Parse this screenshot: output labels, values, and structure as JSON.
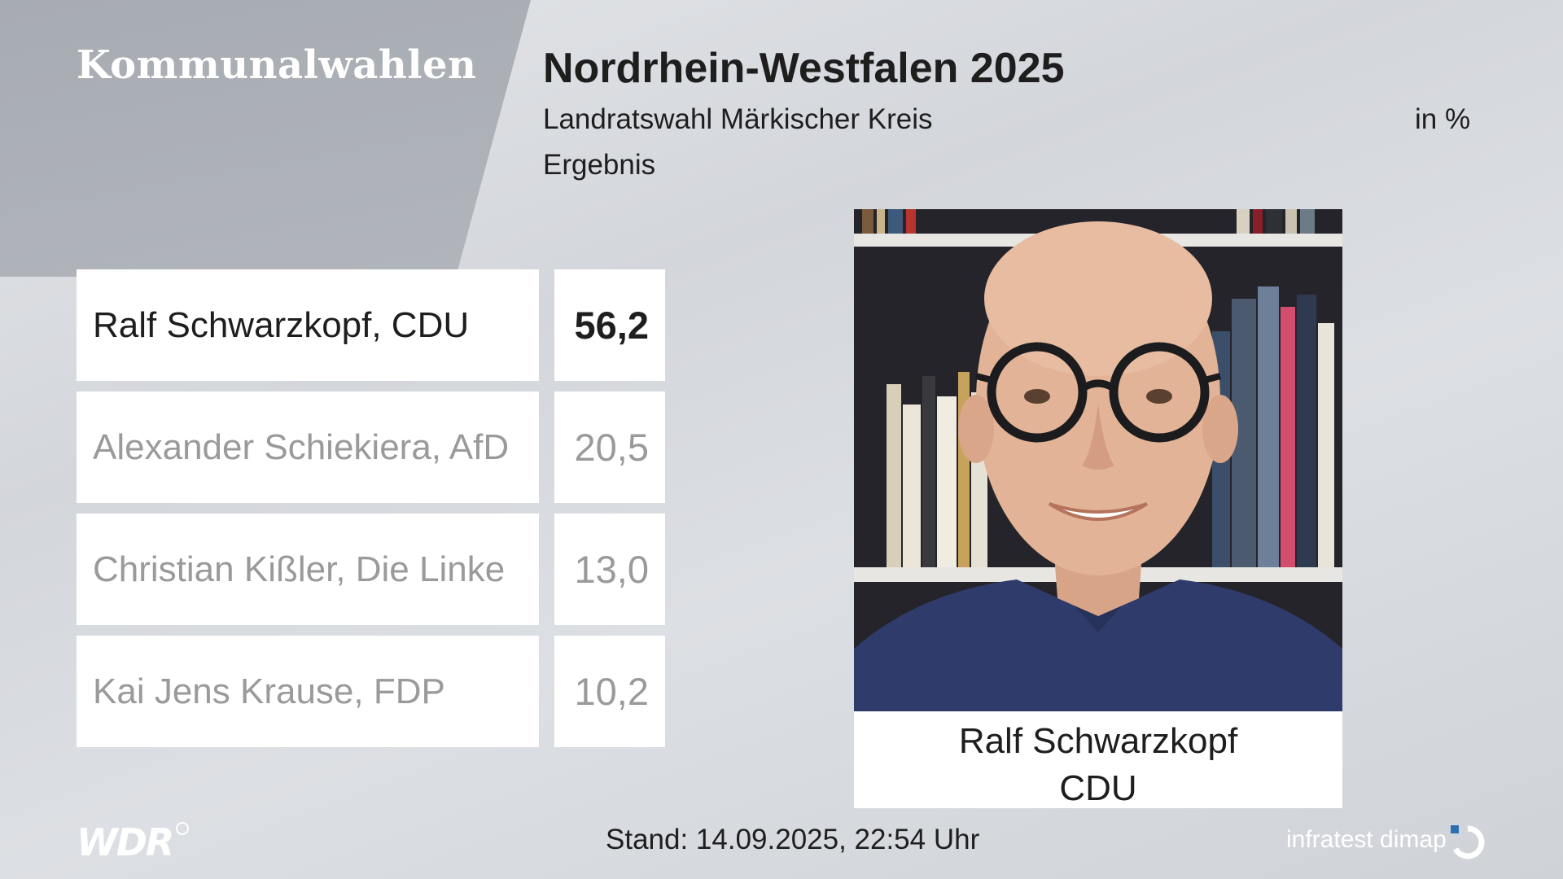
{
  "header": {
    "brand": "Kommunalwahlen",
    "title": "Nordrhein-Westfalen 2025",
    "subtitle": "Landratswahl Märkischer Kreis",
    "unit": "in %",
    "result_label": "Ergebnis"
  },
  "chart_data": {
    "type": "table",
    "title": "Nordrhein-Westfalen 2025",
    "subtitle": "Landratswahl Märkischer Kreis",
    "unit": "in %",
    "rows": [
      {
        "candidate": "Ralf Schwarzkopf, CDU",
        "value": 56.2,
        "display": "56,2",
        "highlight": true
      },
      {
        "candidate": "Alexander Schiekiera, AfD",
        "value": 20.5,
        "display": "20,5",
        "highlight": false
      },
      {
        "candidate": "Christian Kißler, Die Linke",
        "value": 13.0,
        "display": "13,0",
        "highlight": false
      },
      {
        "candidate": "Kai Jens Krause, FDP",
        "value": 10.2,
        "display": "10,2",
        "highlight": false
      }
    ]
  },
  "winner_card": {
    "name": "Ralf Schwarzkopf",
    "party": "CDU"
  },
  "footer": {
    "broadcaster": "WDR",
    "timestamp": "Stand: 14.09.2025, 22:54 Uhr",
    "source": "infratest dimap"
  }
}
